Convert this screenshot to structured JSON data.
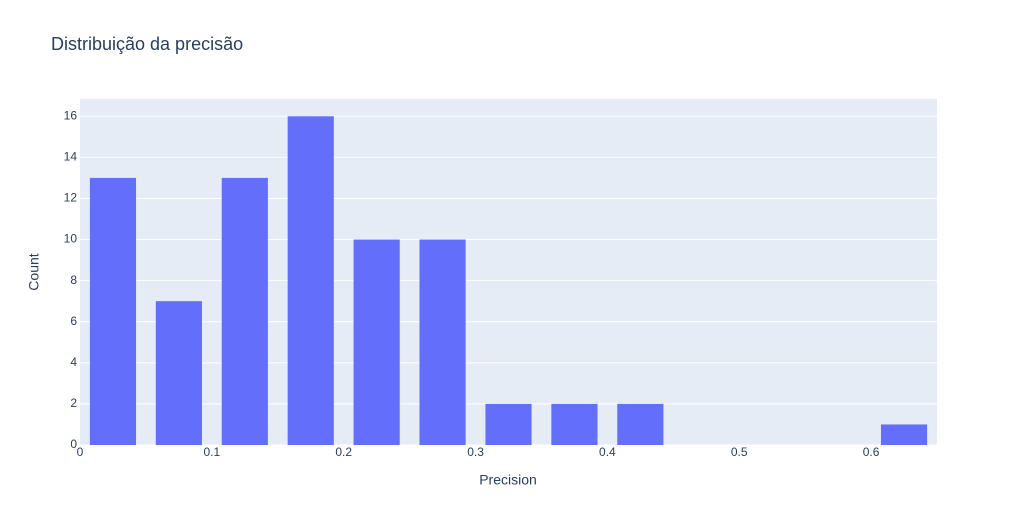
{
  "chart_data": {
    "type": "histogram",
    "title": "Distribuição da precisão",
    "xlabel": "Precision",
    "ylabel": "Count",
    "bins": [
      0,
      0.05,
      0.1,
      0.15,
      0.2,
      0.25,
      0.3,
      0.35,
      0.4,
      0.45,
      0.5,
      0.55,
      0.6,
      0.65
    ],
    "values": [
      13,
      7,
      13,
      16,
      10,
      10,
      2,
      2,
      2,
      0,
      0,
      0,
      1
    ],
    "color": "#636efa",
    "xlim": [
      0,
      0.65
    ],
    "ylim": [
      0,
      16.84
    ],
    "xticks": [
      0,
      0.1,
      0.2,
      0.3,
      0.4,
      0.5,
      0.6
    ],
    "yticks": [
      0,
      2,
      4,
      6,
      8,
      10,
      12,
      14,
      16
    ],
    "ygrid": true,
    "xgrid": false
  }
}
